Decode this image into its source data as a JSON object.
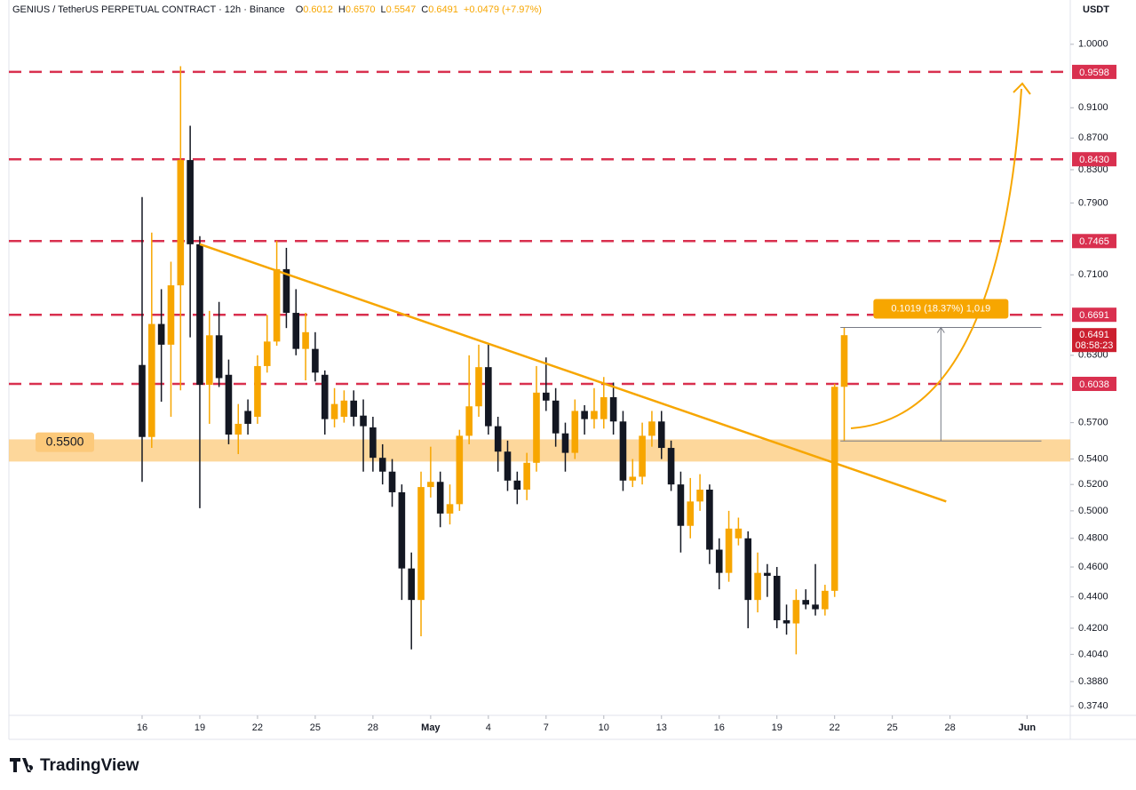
{
  "chart_data": {
    "type": "candlestick",
    "title": "GENIUS / TetherUS PERPETUAL CONTRACT · 12h · Binance",
    "legend": [
      {
        "key": "O",
        "value": "0.6012"
      },
      {
        "key": "H",
        "value": "0.6570"
      },
      {
        "key": "L",
        "value": "0.5547"
      },
      {
        "key": "C",
        "value": "0.6491"
      }
    ],
    "change": "+0.0479 (+7.97%)",
    "currency": "USDT",
    "up_color": "#f7a600",
    "down_color": "#131722",
    "log_scale": true,
    "grid": false,
    "open": [
      0.621,
      0.558,
      0.66,
      0.64,
      0.699,
      0.842,
      0.743,
      0.603,
      0.649,
      0.612,
      0.56,
      0.58,
      0.575,
      0.62,
      0.643,
      0.716,
      0.671,
      0.636,
      0.636,
      0.612,
      0.573,
      0.575,
      0.589,
      0.576,
      0.566,
      0.541,
      0.53,
      0.514,
      0.459,
      0.438,
      0.518,
      0.522,
      0.498,
      0.505,
      0.559,
      0.584,
      0.619,
      0.567,
      0.546,
      0.523,
      0.516,
      0.537,
      0.596,
      0.589,
      0.561,
      0.545,
      0.58,
      0.573,
      0.573,
      0.592,
      0.571,
      0.523,
      0.526,
      0.559,
      0.571,
      0.549,
      0.52,
      0.489,
      0.507,
      0.516,
      0.472,
      0.456,
      0.48,
      0.48,
      0.438,
      0.456,
      0.454,
      0.425,
      0.423,
      0.438,
      0.435,
      0.432,
      0.444,
      0.6012
    ],
    "high": [
      0.797,
      0.756,
      0.695,
      0.724,
      0.968,
      0.886,
      0.752,
      0.673,
      0.682,
      0.626,
      0.586,
      0.59,
      0.63,
      0.669,
      0.747,
      0.739,
      0.695,
      0.671,
      0.652,
      0.616,
      0.6,
      0.598,
      0.598,
      0.59,
      0.575,
      0.552,
      0.54,
      0.52,
      0.47,
      0.53,
      0.55,
      0.53,
      0.52,
      0.564,
      0.63,
      0.64,
      0.64,
      0.575,
      0.555,
      0.53,
      0.545,
      0.62,
      0.628,
      0.6,
      0.57,
      0.59,
      0.585,
      0.6,
      0.61,
      0.605,
      0.58,
      0.54,
      0.57,
      0.58,
      0.58,
      0.555,
      0.53,
      0.525,
      0.528,
      0.52,
      0.48,
      0.5,
      0.495,
      0.485,
      0.47,
      0.462,
      0.46,
      0.435,
      0.445,
      0.445,
      0.462,
      0.448,
      0.604,
      0.657
    ],
    "low": [
      0.522,
      0.549,
      0.588,
      0.575,
      0.598,
      0.647,
      0.502,
      0.569,
      0.601,
      0.552,
      0.544,
      0.56,
      0.569,
      0.614,
      0.639,
      0.656,
      0.63,
      0.607,
      0.606,
      0.56,
      0.566,
      0.57,
      0.567,
      0.53,
      0.53,
      0.52,
      0.503,
      0.438,
      0.407,
      0.415,
      0.51,
      0.488,
      0.49,
      0.5,
      0.552,
      0.575,
      0.56,
      0.53,
      0.515,
      0.505,
      0.508,
      0.53,
      0.58,
      0.55,
      0.53,
      0.54,
      0.56,
      0.565,
      0.565,
      0.56,
      0.515,
      0.518,
      0.52,
      0.55,
      0.54,
      0.515,
      0.47,
      0.48,
      0.5,
      0.462,
      0.445,
      0.45,
      0.475,
      0.42,
      0.43,
      0.44,
      0.42,
      0.416,
      0.404,
      0.432,
      0.428,
      0.428,
      0.44,
      0.5547
    ],
    "close": [
      0.558,
      0.66,
      0.64,
      0.699,
      0.842,
      0.743,
      0.603,
      0.649,
      0.609,
      0.56,
      0.569,
      0.569,
      0.62,
      0.643,
      0.716,
      0.671,
      0.636,
      0.652,
      0.614,
      0.573,
      0.586,
      0.589,
      0.575,
      0.567,
      0.541,
      0.53,
      0.514,
      0.459,
      0.438,
      0.518,
      0.522,
      0.498,
      0.505,
      0.559,
      0.584,
      0.619,
      0.567,
      0.546,
      0.523,
      0.516,
      0.537,
      0.596,
      0.589,
      0.561,
      0.545,
      0.58,
      0.573,
      0.58,
      0.592,
      0.571,
      0.523,
      0.526,
      0.559,
      0.571,
      0.549,
      0.52,
      0.489,
      0.507,
      0.516,
      0.472,
      0.456,
      0.487,
      0.487,
      0.438,
      0.456,
      0.454,
      0.425,
      0.423,
      0.438,
      0.435,
      0.432,
      0.444,
      0.6012,
      0.6491
    ],
    "ylim": [
      0.369,
      1.068
    ],
    "yticks": [
      {
        "value": 1,
        "label": "1.0000"
      },
      {
        "value": 0.91,
        "label": "0.9100"
      },
      {
        "value": 0.87,
        "label": "0.8700"
      },
      {
        "value": 0.83,
        "label": "0.8300"
      },
      {
        "value": 0.79,
        "label": "0.7900"
      },
      {
        "value": 0.71,
        "label": "0.7100"
      },
      {
        "value": 0.63,
        "label": "0.6300"
      },
      {
        "value": 0.57,
        "label": "0.5700"
      },
      {
        "value": 0.54,
        "label": "0.5400"
      },
      {
        "value": 0.52,
        "label": "0.5200"
      },
      {
        "value": 0.5,
        "label": "0.5000"
      },
      {
        "value": 0.48,
        "label": "0.4800"
      },
      {
        "value": 0.46,
        "label": "0.4600"
      },
      {
        "value": 0.44,
        "label": "0.4400"
      },
      {
        "value": 0.42,
        "label": "0.4200"
      },
      {
        "value": 0.404,
        "label": "0.4040"
      },
      {
        "value": 0.388,
        "label": "0.3880"
      },
      {
        "value": 0.374,
        "label": "0.3740"
      }
    ],
    "xlim": [
      -13.85,
      96.5
    ],
    "xticks": [
      {
        "value": 0,
        "label": "16"
      },
      {
        "value": 6,
        "label": "19"
      },
      {
        "value": 12,
        "label": "22"
      },
      {
        "value": 18,
        "label": "25"
      },
      {
        "value": 24,
        "label": "28"
      },
      {
        "value": 30,
        "label": "May"
      },
      {
        "value": 36,
        "label": "4"
      },
      {
        "value": 42,
        "label": "7"
      },
      {
        "value": 48,
        "label": "10"
      },
      {
        "value": 54,
        "label": "13"
      },
      {
        "value": 60,
        "label": "16"
      },
      {
        "value": 66,
        "label": "19"
      },
      {
        "value": 72,
        "label": "22"
      },
      {
        "value": 78,
        "label": "25"
      },
      {
        "value": 84,
        "label": "28"
      },
      {
        "value": 92,
        "label": "Jun"
      }
    ],
    "level_color": "#d9304f",
    "levels": [
      {
        "value": 0.9598,
        "label": "0.9598"
      },
      {
        "value": 0.843,
        "label": "0.8430"
      },
      {
        "value": 0.7465,
        "label": "0.7465"
      },
      {
        "value": 0.6691,
        "label": "0.6691"
      },
      {
        "value": 0.6038,
        "label": "0.6038"
      }
    ],
    "support": {
      "low": 0.538,
      "high": 0.556,
      "value": 0.55,
      "label": "0.5500"
    },
    "current": {
      "value": 0.6491,
      "label": "0.6491",
      "countdown": "08:58:23"
    },
    "trendline": [
      {
        "x": 6,
        "value": 0.743
      },
      {
        "x": 83.6,
        "value": 0.507
      }
    ],
    "measure": {
      "from": 0.5547,
      "to": 0.6566,
      "x": [
        72.6,
        93.5
      ],
      "label": "0.1019 (18.37%) 1,019"
    }
  },
  "brand": "TradingView"
}
